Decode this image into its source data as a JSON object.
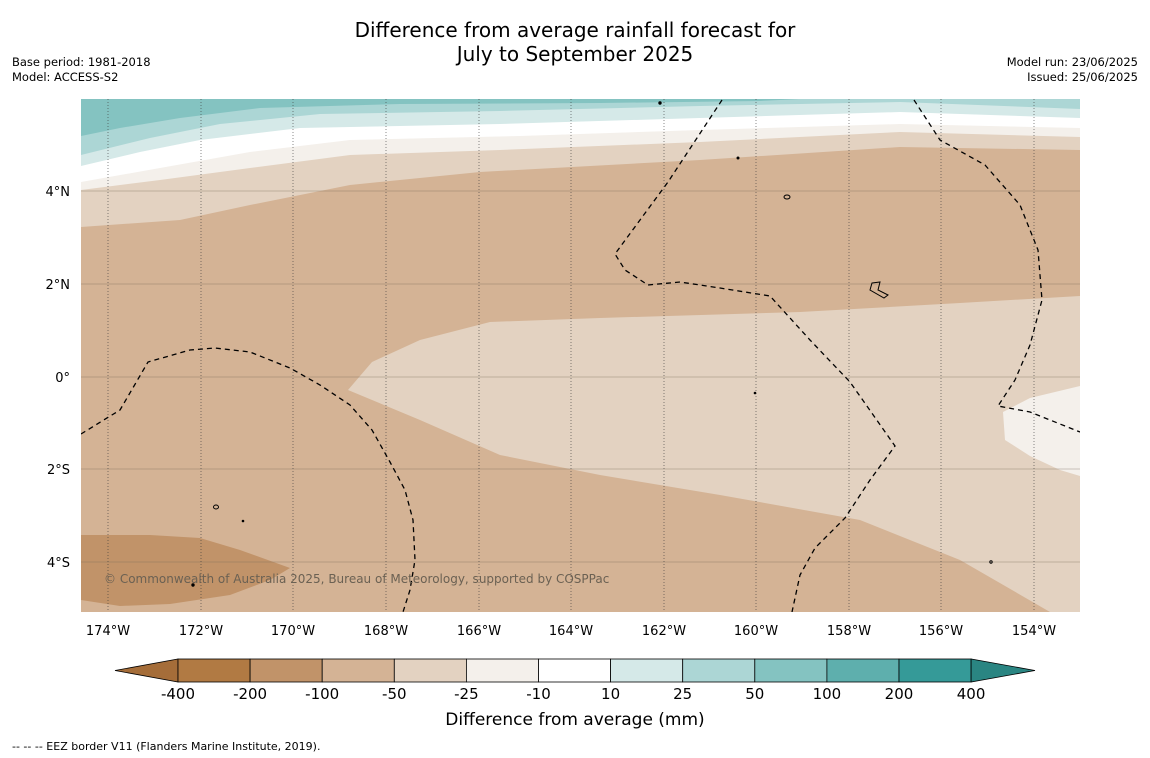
{
  "title": {
    "line1": "Difference from average rainfall forecast for",
    "line2": "July to September 2025"
  },
  "meta_left": {
    "base_period": "Base period: 1981-2018",
    "model": "Model: ACCESS-S2"
  },
  "meta_right": {
    "model_run": "Model run: 23/06/2025",
    "issued": "Issued: 25/06/2025"
  },
  "copyright": "© Commonwealth of Australia 2025, Bureau of Meteorology, supported by COSPPac",
  "footnote": "--  --  -- EEZ border V11 (Flanders Marine Institute, 2019).",
  "map": {
    "lon_labels": [
      "174°W",
      "172°W",
      "170°W",
      "168°W",
      "166°W",
      "164°W",
      "162°W",
      "160°W",
      "158°W",
      "156°W",
      "154°W"
    ],
    "lat_labels": [
      "4°N",
      "2°N",
      "0°",
      "2°S",
      "4°S"
    ]
  },
  "colorbar": {
    "title": "Difference from average (mm)",
    "tick_labels": [
      "-400",
      "-200",
      "-100",
      "-50",
      "-25",
      "-10",
      "10",
      "25",
      "50",
      "100",
      "200",
      "400"
    ],
    "colors": [
      "#a56d39",
      "#b17a43",
      "#c19369",
      "#d4b395",
      "#e3d2c1",
      "#f4f0eb",
      "#ffffff",
      "#d5e9e8",
      "#acd6d5",
      "#84c3c1",
      "#5eafad",
      "#359a98",
      "#2a8582"
    ]
  },
  "legend_colors": {
    "dry_moderate": "#d4b395",
    "dry_light": "#e3d2c1",
    "dry_strong": "#c19369",
    "near_normal": "#f4f0eb",
    "wet_light": "#d5e9e8",
    "wet_moderate": "#acd6d5",
    "wet_strong": "#84c3c1"
  }
}
